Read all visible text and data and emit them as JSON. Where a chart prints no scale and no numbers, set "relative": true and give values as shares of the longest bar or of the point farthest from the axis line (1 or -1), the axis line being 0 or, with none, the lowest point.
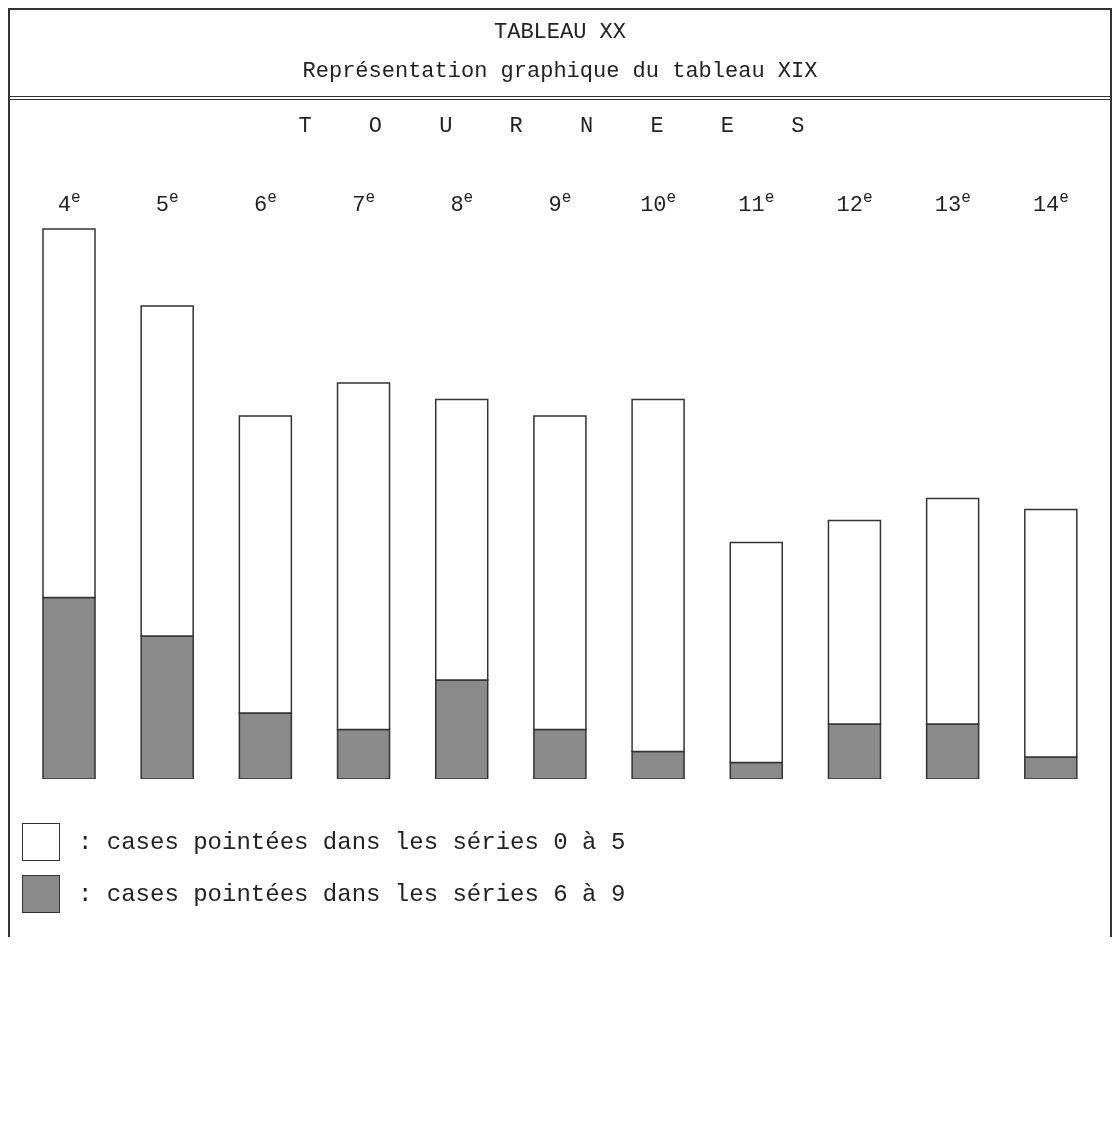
{
  "chart_data": {
    "type": "bar",
    "title": "TABLEAU XX",
    "subtitle": "Représentation graphique du tableau XIX",
    "xlabel": "TOURNEES",
    "categories": [
      "4$^{e}$",
      "5$^{e}$",
      "6$^{e}$",
      "7$^{e}$",
      "8$^{e}$",
      "9$^{e}$",
      "10$^{e}$",
      "11$^{e}$",
      "12$^{e}$",
      "13$^{e}$",
      "14$^{e}$"
    ],
    "relative": true,
    "stacked": true,
    "legend": "bottom",
    "grid": false,
    "series": [
      {
        "name": ": cases pointées dans les séries 6 à 9",
        "color": "#8a8a8a",
        "values": [
          0.33,
          0.26,
          0.12,
          0.09,
          0.18,
          0.09,
          0.05,
          0.03,
          0.1,
          0.1,
          0.04
        ]
      },
      {
        "name": ": cases pointées dans les séries 0 à 5",
        "color": "#ffffff",
        "values": [
          0.67,
          0.6,
          0.54,
          0.63,
          0.51,
          0.57,
          0.64,
          0.4,
          0.37,
          0.41,
          0.45
        ]
      }
    ]
  }
}
